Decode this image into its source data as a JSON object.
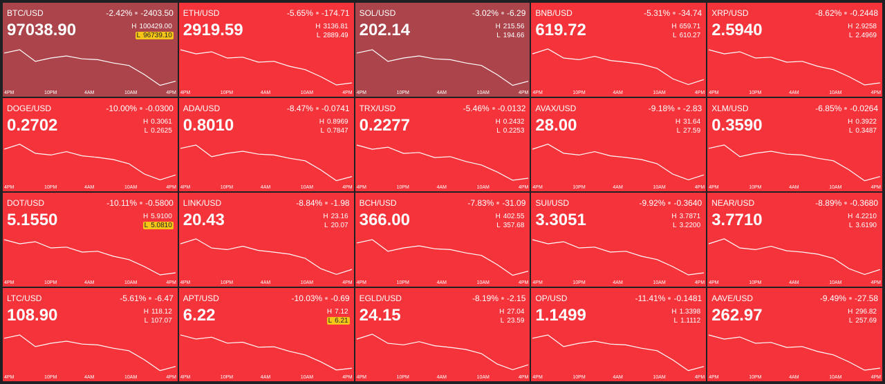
{
  "time_axis": [
    "4PM",
    "10PM",
    "4AM",
    "10AM",
    "4PM"
  ],
  "high_prefix": "H",
  "low_prefix": "L",
  "tile_color": "#f5333b",
  "line_color": "#ffffff",
  "tiles": [
    {
      "symbol": "BTC/USD",
      "price": "97038.90",
      "change_pct": "-2.42%",
      "change": "-2403.50",
      "high": {
        "value": 100429,
        "label": "100429.00"
      },
      "low": {
        "value": 96739.1,
        "label": "96739.10"
      },
      "low_highlight": true,
      "background": "#ab454b",
      "line": [
        99764.8,
        100060,
        99027,
        99322,
        99506,
        99248,
        99174,
        98879,
        98658,
        97846,
        96887,
        97256
      ]
    },
    {
      "symbol": "ETH/USD",
      "price": "2919.59",
      "change_pct": "-5.65%",
      "change": "-174.71",
      "high": {
        "value": 3136.81,
        "label": "3136.81"
      },
      "low": {
        "value": 2889.49,
        "label": "2889.49"
      },
      "line": [
        3112.1,
        3087.3,
        3099.7,
        3062.6,
        3067.6,
        3037.9,
        3042.9,
        3013.2,
        2993.4,
        2951.3,
        2901.9,
        2914.2
      ]
    },
    {
      "symbol": "SOL/USD",
      "price": "202.14",
      "change_pct": "-3.02%",
      "change": "-6.29",
      "high": {
        "value": 215.56,
        "label": "215.56"
      },
      "low": {
        "value": 194.66,
        "label": "194.66"
      },
      "background": "#ab454b",
      "line": [
        211.8,
        213.47,
        207.62,
        209.29,
        210.34,
        208.87,
        208.45,
        206.78,
        205.53,
        200.93,
        195.5,
        197.59
      ]
    },
    {
      "symbol": "BNB/USD",
      "price": "619.72",
      "change_pct": "-5.31%",
      "change": "-34.74",
      "high": {
        "value": 659.71,
        "label": "659.71"
      },
      "low": {
        "value": 610.27,
        "label": "610.27"
      },
      "line": [
        649.82,
        655.75,
        644.88,
        642.9,
        646.86,
        641.91,
        639.93,
        637.46,
        632.52,
        620.16,
        613.24,
        619.17
      ]
    },
    {
      "symbol": "XRP/USD",
      "price": "2.5940",
      "change_pct": "-8.62%",
      "change": "-0.2448",
      "high": {
        "value": 2.9258,
        "label": "2.9258"
      },
      "low": {
        "value": 2.4969,
        "label": "2.4969"
      },
      "line": [
        2.8829,
        2.84,
        2.8615,
        2.7971,
        2.8057,
        2.7542,
        2.7628,
        2.7114,
        2.677,
        2.6041,
        2.5183,
        2.5398
      ]
    },
    {
      "symbol": "DOGE/USD",
      "price": "0.2702",
      "change_pct": "-10.00%",
      "change": "-0.0300",
      "high": {
        "value": 0.3061,
        "label": "0.3061"
      },
      "low": {
        "value": 0.2625,
        "label": "0.2625"
      },
      "line": [
        0.2974,
        0.3026,
        0.293,
        0.2913,
        0.2948,
        0.2904,
        0.2887,
        0.2865,
        0.2821,
        0.2712,
        0.2651,
        0.2703
      ]
    },
    {
      "symbol": "ADA/USD",
      "price": "0.8010",
      "change_pct": "-8.47%",
      "change": "-0.0741",
      "high": {
        "value": 0.8969,
        "label": "0.8969"
      },
      "low": {
        "value": 0.7847,
        "label": "0.7847"
      },
      "line": [
        0.8767,
        0.8857,
        0.8543,
        0.8632,
        0.8689,
        0.861,
        0.8588,
        0.8498,
        0.843,
        0.8184,
        0.7892,
        0.8004
      ]
    },
    {
      "symbol": "TRX/USD",
      "price": "0.2277",
      "change_pct": "-5.46%",
      "change": "-0.0132",
      "high": {
        "value": 0.2432,
        "label": "0.2432"
      },
      "low": {
        "value": 0.2253,
        "label": "0.2253"
      },
      "line": [
        0.2414,
        0.2396,
        0.2405,
        0.2378,
        0.2382,
        0.236,
        0.2364,
        0.2343,
        0.2328,
        0.2298,
        0.2262,
        0.2271
      ]
    },
    {
      "symbol": "AVAX/USD",
      "price": "28.00",
      "change_pct": "-9.18%",
      "change": "-2.83",
      "high": {
        "value": 31.64,
        "label": "31.64"
      },
      "low": {
        "value": 27.59,
        "label": "27.59"
      },
      "line": [
        30.83,
        31.32,
        30.43,
        30.26,
        30.59,
        30.18,
        30.02,
        29.82,
        29.41,
        28.4,
        27.83,
        28.32
      ]
    },
    {
      "symbol": "XLM/USD",
      "price": "0.3590",
      "change_pct": "-6.85%",
      "change": "-0.0264",
      "high": {
        "value": 0.3922,
        "label": "0.3922"
      },
      "low": {
        "value": 0.3487,
        "label": "0.3487"
      },
      "line": [
        0.3844,
        0.3879,
        0.3757,
        0.3792,
        0.3813,
        0.3783,
        0.3774,
        0.3739,
        0.3713,
        0.3618,
        0.3504,
        0.3548
      ]
    },
    {
      "symbol": "DOT/USD",
      "price": "5.1550",
      "change_pct": "-10.11%",
      "change": "-0.5800",
      "high": {
        "value": 5.91,
        "label": "5.9100"
      },
      "low": {
        "value": 5.081,
        "label": "5.0810"
      },
      "low_highlight": true,
      "line": [
        5.8271,
        5.7442,
        5.7857,
        5.6613,
        5.6779,
        5.5784,
        5.595,
        5.4955,
        5.4292,
        5.2883,
        5.1225,
        5.1639
      ]
    },
    {
      "symbol": "LINK/USD",
      "price": "20.43",
      "change_pct": "-8.84%",
      "change": "-1.98",
      "high": {
        "value": 23.16,
        "label": "23.16"
      },
      "low": {
        "value": 20.07,
        "label": "20.07"
      },
      "line": [
        22.54,
        22.91,
        22.23,
        22.11,
        22.36,
        22.05,
        21.92,
        21.77,
        21.46,
        20.69,
        20.26,
        20.63
      ]
    },
    {
      "symbol": "BCH/USD",
      "price": "366.00",
      "change_pct": "-7.83%",
      "change": "-31.09",
      "high": {
        "value": 402.55,
        "label": "402.55"
      },
      "low": {
        "value": 357.68,
        "label": "357.68"
      },
      "line": [
        394.47,
        398.06,
        385.5,
        389.09,
        391.33,
        388.19,
        387.29,
        383.7,
        381.01,
        371.14,
        359.47,
        363.96
      ]
    },
    {
      "symbol": "SUI/USD",
      "price": "3.3051",
      "change_pct": "-9.92%",
      "change": "-0.3640",
      "high": {
        "value": 3.7871,
        "label": "3.7871"
      },
      "low": {
        "value": 3.22,
        "label": "3.2200"
      },
      "line": [
        3.7304,
        3.6737,
        3.702,
        3.617,
        3.6283,
        3.5603,
        3.5716,
        3.5036,
        3.4582,
        3.3618,
        3.2484,
        3.2767
      ]
    },
    {
      "symbol": "NEAR/USD",
      "price": "3.7710",
      "change_pct": "-8.89%",
      "change": "-0.3680",
      "high": {
        "value": 4.221,
        "label": "4.2210"
      },
      "low": {
        "value": 3.619,
        "label": "3.6190"
      },
      "line": [
        4.1006,
        4.1728,
        4.0404,
        4.0163,
        4.0645,
        3.9993,
        3.9802,
        3.9501,
        3.8899,
        3.7394,
        3.6551,
        3.7274
      ]
    },
    {
      "symbol": "LTC/USD",
      "price": "108.90",
      "change_pct": "-5.61%",
      "change": "-6.47",
      "high": {
        "value": 118.12,
        "label": "118.12"
      },
      "low": {
        "value": 107.07,
        "label": "107.07"
      },
      "line": [
        116.13,
        117.02,
        113.92,
        114.81,
        115.36,
        114.58,
        114.36,
        113.48,
        112.82,
        110.39,
        107.51,
        108.62
      ]
    },
    {
      "symbol": "APT/USD",
      "price": "6.22",
      "change_pct": "-10.03%",
      "change": "-0.69",
      "high": {
        "value": 7.12,
        "label": "7.12"
      },
      "low": {
        "value": 6.21,
        "label": "6.21"
      },
      "low_highlight": true,
      "line": [
        7.03,
        6.94,
        6.98,
        6.85,
        6.87,
        6.76,
        6.77,
        6.67,
        6.59,
        6.44,
        6.26,
        6.3
      ]
    },
    {
      "symbol": "EGLD/USD",
      "price": "24.15",
      "change_pct": "-8.19%",
      "change": "-2.15",
      "high": {
        "value": 27.04,
        "label": "27.04"
      },
      "low": {
        "value": 23.59,
        "label": "23.59"
      },
      "line": [
        26.35,
        26.76,
        26.0,
        25.87,
        26.14,
        25.8,
        25.66,
        25.49,
        25.14,
        24.28,
        23.8,
        24.21
      ]
    },
    {
      "symbol": "OP/USD",
      "price": "1.1499",
      "change_pct": "-11.41%",
      "change": "-0.1481",
      "high": {
        "value": 1.3398,
        "label": "1.3398"
      },
      "low": {
        "value": 1.1112,
        "label": "1.1112"
      },
      "line": [
        1.2987,
        1.3169,
        1.2529,
        1.2712,
        1.2827,
        1.2666,
        1.2621,
        1.2438,
        1.2301,
        1.1798,
        1.1203,
        1.1432
      ]
    },
    {
      "symbol": "AAVE/USD",
      "price": "262.97",
      "change_pct": "-9.49%",
      "change": "-27.58",
      "high": {
        "value": 296.82,
        "label": "296.82"
      },
      "low": {
        "value": 257.69,
        "label": "257.69"
      },
      "line": [
        292.91,
        288.99,
        290.95,
        285.08,
        285.86,
        281.17,
        281.95,
        277.26,
        274.12,
        267.47,
        259.65,
        261.6
      ]
    }
  ]
}
